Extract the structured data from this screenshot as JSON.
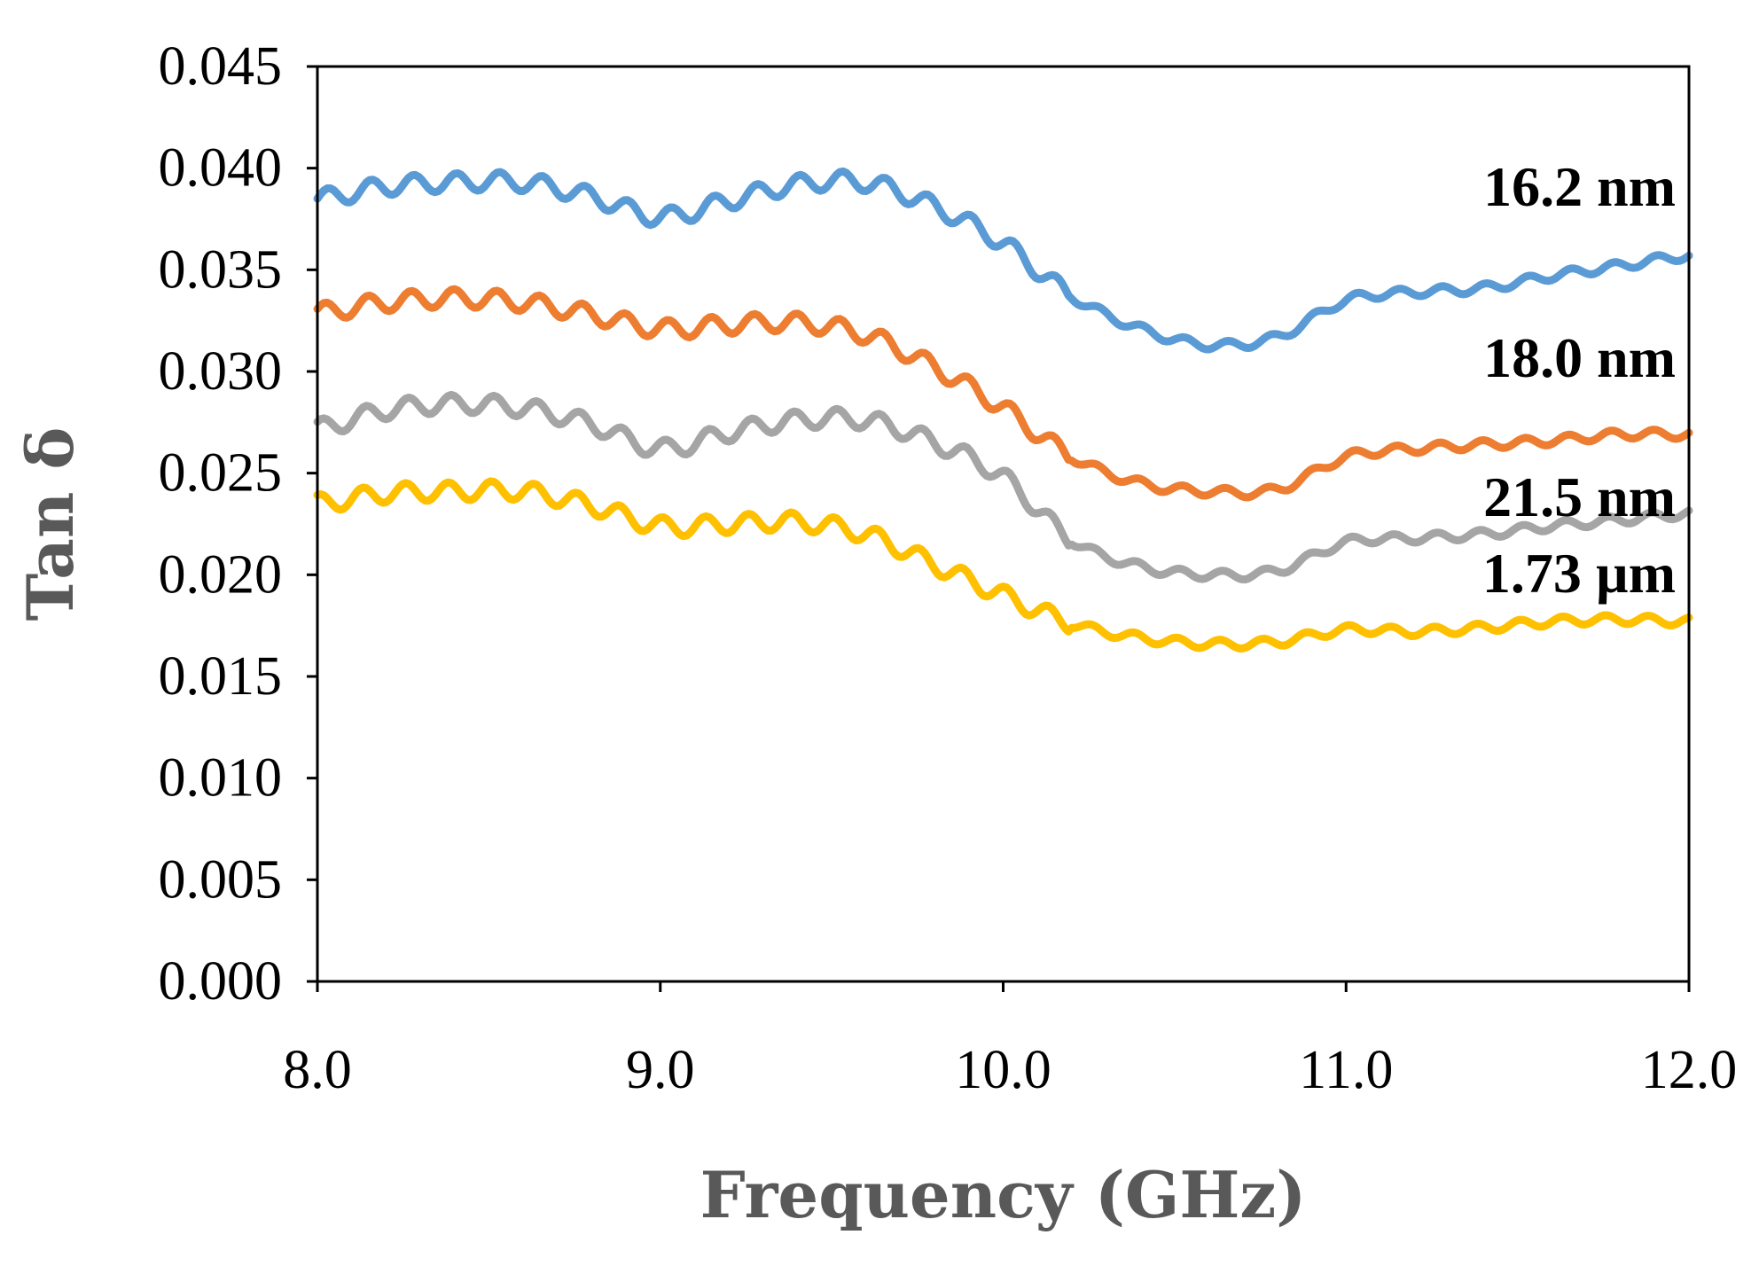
{
  "chart_data": {
    "type": "line",
    "title": "",
    "xlabel": "Frequency (GHz)",
    "ylabel": "Tan δ",
    "xlim": [
      8.0,
      12.0
    ],
    "ylim": [
      0.0,
      0.045
    ],
    "x_ticks": [
      8.0,
      9.0,
      10.0,
      11.0,
      12.0
    ],
    "x_tick_labels": [
      "8.0",
      "9.0",
      "10.0",
      "11.0",
      "12.0"
    ],
    "y_ticks": [
      0.0,
      0.005,
      0.01,
      0.015,
      0.02,
      0.025,
      0.03,
      0.035,
      0.04,
      0.045
    ],
    "y_tick_labels": [
      "0.000",
      "0.005",
      "0.010",
      "0.015",
      "0.020",
      "0.025",
      "0.030",
      "0.035",
      "0.040",
      "0.045"
    ],
    "grid": false,
    "legend": "inline labels at right end of each line",
    "x": [
      8.0,
      8.2,
      8.4,
      8.6,
      8.8,
      9.0,
      9.2,
      9.4,
      9.6,
      9.8,
      10.0,
      10.2,
      10.4,
      10.6,
      10.8,
      11.0,
      11.2,
      11.4,
      11.6,
      11.8,
      12.0
    ],
    "series": [
      {
        "name": "16.2 nm",
        "label": "16.2 nm",
        "color": "#5B9BD5",
        "values": [
          0.0385,
          0.0391,
          0.0393,
          0.0393,
          0.0386,
          0.0376,
          0.0384,
          0.0392,
          0.0393,
          0.0381,
          0.0363,
          0.0337,
          0.0321,
          0.0313,
          0.0317,
          0.0335,
          0.0339,
          0.0341,
          0.0347,
          0.0352,
          0.0357
        ]
      },
      {
        "name": "18.0 nm",
        "label": "18.0 nm",
        "color": "#ED7D31",
        "values": [
          0.0329,
          0.0334,
          0.0336,
          0.0334,
          0.0328,
          0.0321,
          0.0323,
          0.0324,
          0.0318,
          0.0302,
          0.0282,
          0.0258,
          0.0245,
          0.0241,
          0.0242,
          0.0258,
          0.0262,
          0.0264,
          0.0266,
          0.0269,
          0.0269
        ]
      },
      {
        "name": "21.5 nm",
        "label": "21.5 nm",
        "color": "#A5A5A5",
        "values": [
          0.0272,
          0.0281,
          0.0284,
          0.0282,
          0.0274,
          0.0262,
          0.027,
          0.0276,
          0.0276,
          0.0265,
          0.0248,
          0.0217,
          0.0204,
          0.02,
          0.0202,
          0.0216,
          0.0218,
          0.022,
          0.0224,
          0.0227,
          0.023
        ]
      },
      {
        "name": "1.73 µm",
        "label": "1.73 µm",
        "color": "#FFC000",
        "values": [
          0.0235,
          0.024,
          0.0241,
          0.0241,
          0.0234,
          0.0224,
          0.0225,
          0.0226,
          0.022,
          0.0205,
          0.019,
          0.0176,
          0.0169,
          0.0166,
          0.0167,
          0.0173,
          0.0172,
          0.0174,
          0.0177,
          0.0178,
          0.0177
        ]
      }
    ]
  }
}
